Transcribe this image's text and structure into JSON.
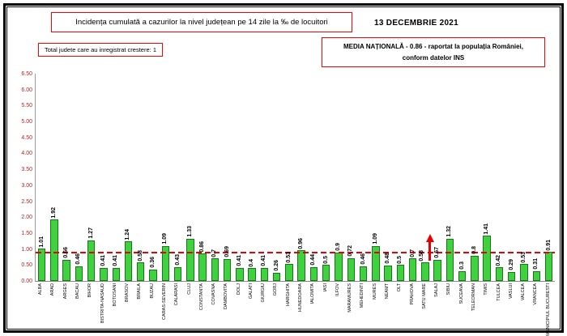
{
  "header": {
    "title": "Incidența cumulată a cazurilor la nivel județean pe 14 zile la ‰ de locuitori",
    "date": "13 DECEMBRIE 2021",
    "growth_note": "Total judete care au inregistrat crestere: 1",
    "national_average_box": {
      "line1": "MEDIA NAȚIONALĂ - 0.86 - raportat la populația României,",
      "line2": "conform datelor INS"
    }
  },
  "chart_data": {
    "type": "bar",
    "title": "Incidența cumulată a cazurilor la nivel județean pe 14 zile la ‰ de locuitori",
    "unit": "‰ de locuitori",
    "categories": [
      "ALBA",
      "ARAD",
      "ARGES",
      "BACAU",
      "BIHOR",
      "BISTRITA-NASAUD",
      "BOTOSANI",
      "BRASOV",
      "BRAILA",
      "BUZAU",
      "CARAS-SEVERIN",
      "CALARASI",
      "CLUJ",
      "CONSTANTA",
      "COVASNA",
      "DAMBOVITA",
      "DOLJ",
      "GALATI",
      "GIURGIU",
      "GORJ",
      "HARGHITA",
      "HUNEDOARA",
      "IALOMITA",
      "IASI",
      "ILFOV",
      "MARAMURES",
      "MEHEDINTI",
      "MURES",
      "NEAMT",
      "OLT",
      "PRAHOVA",
      "SATU MARE",
      "SALAJ",
      "SIBIU",
      "SUCEAVA",
      "TELEORMAN",
      "TIMIS",
      "TULCEA",
      "VASLUI",
      "VALCEA",
      "VRANCEA",
      "MUNICIPIUL BUCURESTI"
    ],
    "values": [
      1.01,
      1.92,
      0.66,
      0.46,
      1.27,
      0.41,
      0.41,
      1.24,
      0.58,
      0.36,
      1.09,
      0.43,
      1.33,
      0.86,
      0.7,
      0.69,
      0.41,
      0.4,
      0.41,
      0.26,
      0.53,
      0.96,
      0.44,
      0.5,
      0.9,
      0.72,
      0.46,
      1.09,
      0.48,
      0.5,
      0.7,
      0.58,
      0.67,
      1.32,
      0.3,
      0.8,
      1.41,
      0.42,
      0.29,
      0.53,
      0.31,
      0.91
    ],
    "national_average": 0.86,
    "highlight_county": "SATU MARE",
    "counties_increasing": 1,
    "ylim": [
      0,
      6.5
    ],
    "ytick_step": 0.5,
    "yticks": [
      "6.50",
      "6.00",
      "5.50",
      "5.00",
      "4.50",
      "4.00",
      "3.50",
      "3.00",
      "2.50",
      "2.00",
      "1.50",
      "1.00",
      "0.50",
      "0.00"
    ],
    "bar_color": "#3fd13f",
    "bar_border_color": "#157a15",
    "avg_line_color": "#e80000",
    "axis_label_color": "#b22222",
    "grid": false,
    "legend": "none",
    "value_labels": "rotated-90",
    "category_labels": "rotated-90"
  }
}
